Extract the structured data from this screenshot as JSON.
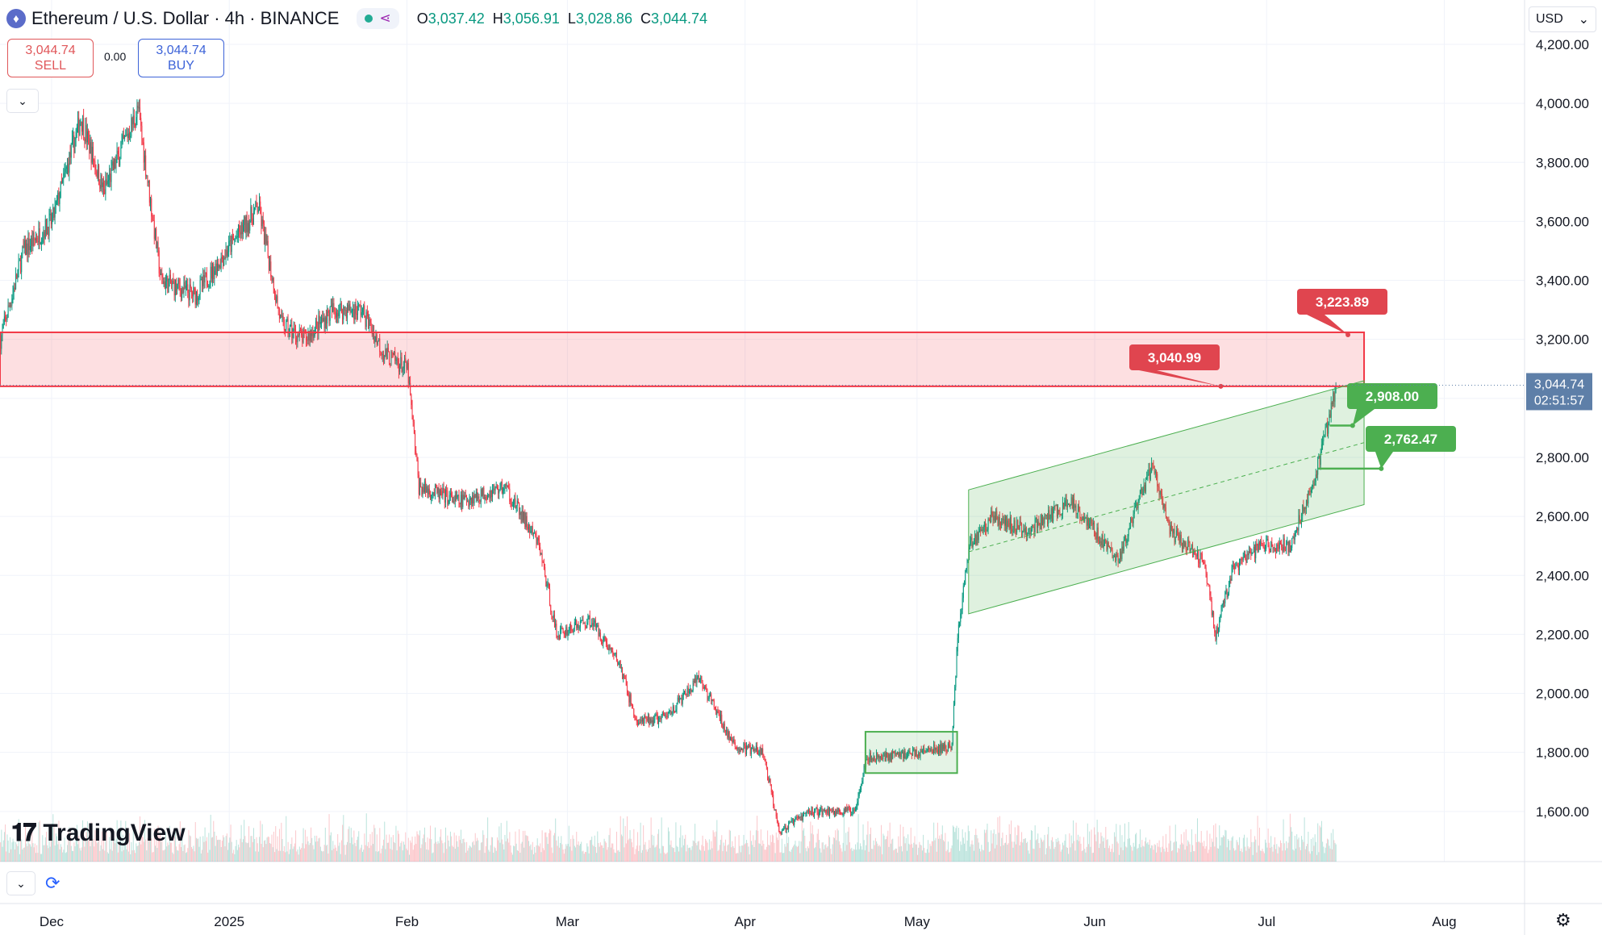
{
  "header": {
    "symbol_icon": "ethereum-icon",
    "title": "Ethereum / U.S. Dollar · 4h · BINANCE",
    "status_icon": "market-open-dot-icon",
    "share_icon": "share-icon",
    "ohlc": {
      "o_label": "O",
      "o_value": "3,037.42",
      "h_label": "H",
      "h_value": "3,056.91",
      "l_label": "L",
      "l_value": "3,028.86",
      "c_label": "C",
      "c_value": "3,044.74"
    }
  },
  "trade": {
    "sell_price": "3,044.74",
    "sell_label": "SELL",
    "spread": "0.00",
    "buy_price": "3,044.74",
    "buy_label": "BUY"
  },
  "currency": {
    "label": "USD",
    "icon": "chevron-down-icon"
  },
  "logo": {
    "text": "TradingView",
    "icon": "tradingview-logo-icon"
  },
  "bottom_tools": {
    "collapse_icon": "chevron-down-icon",
    "replay_icon": "refresh-icon"
  },
  "settings_icon": "gear-icon",
  "colors": {
    "up": "#089981",
    "down": "#f23645",
    "zone_red": "#f23645",
    "zone_green": "#4caf50",
    "price_tag": "#5e7fa8",
    "text": "#131722",
    "grid": "#f0f3fa"
  },
  "chart_data": {
    "type": "candlestick",
    "symbol": "ETHUSD",
    "interval": "4h",
    "x_range": [
      "2024-11-22",
      "2025-08-15"
    ],
    "y_range": [
      1430,
      4230
    ],
    "y_ticks": [
      "4,200.00",
      "4,000.00",
      "3,800.00",
      "3,600.00",
      "3,400.00",
      "3,200.00",
      "2,800.00",
      "2,600.00",
      "2,400.00",
      "2,200.00",
      "2,000.00",
      "1,800.00",
      "1,600.00"
    ],
    "x_ticks": [
      {
        "label": "Dec",
        "date": "2024-12-01"
      },
      {
        "label": "2025",
        "date": "2025-01-01"
      },
      {
        "label": "Feb",
        "date": "2025-02-01"
      },
      {
        "label": "Mar",
        "date": "2025-03-01"
      },
      {
        "label": "Apr",
        "date": "2025-04-01"
      },
      {
        "label": "May",
        "date": "2025-05-01"
      },
      {
        "label": "Jun",
        "date": "2025-06-01"
      },
      {
        "label": "Jul",
        "date": "2025-07-01"
      },
      {
        "label": "Aug",
        "date": "2025-08-01"
      }
    ],
    "price_path": [
      [
        "2024-11-22",
        3200
      ],
      [
        "2024-11-26",
        3500
      ],
      [
        "2024-12-01",
        3600
      ],
      [
        "2024-12-06",
        3950
      ],
      [
        "2024-12-10",
        3700
      ],
      [
        "2024-12-16",
        3980
      ],
      [
        "2024-12-20",
        3400
      ],
      [
        "2024-12-26",
        3350
      ],
      [
        "2025-01-06",
        3650
      ],
      [
        "2025-01-10",
        3250
      ],
      [
        "2025-01-14",
        3200
      ],
      [
        "2025-01-19",
        3300
      ],
      [
        "2025-01-24",
        3300
      ],
      [
        "2025-01-28",
        3150
      ],
      [
        "2025-02-01",
        3100
      ],
      [
        "2025-02-03",
        2700
      ],
      [
        "2025-02-10",
        2650
      ],
      [
        "2025-02-18",
        2700
      ],
      [
        "2025-02-24",
        2500
      ],
      [
        "2025-02-27",
        2200
      ],
      [
        "2025-03-05",
        2250
      ],
      [
        "2025-03-10",
        2100
      ],
      [
        "2025-03-13",
        1900
      ],
      [
        "2025-03-18",
        1920
      ],
      [
        "2025-03-24",
        2050
      ],
      [
        "2025-03-30",
        1820
      ],
      [
        "2025-04-04",
        1800
      ],
      [
        "2025-04-07",
        1530
      ],
      [
        "2025-04-12",
        1600
      ],
      [
        "2025-04-20",
        1600
      ],
      [
        "2025-04-22",
        1780
      ],
      [
        "2025-05-01",
        1800
      ],
      [
        "2025-05-07",
        1820
      ],
      [
        "2025-05-08",
        2200
      ],
      [
        "2025-05-10",
        2500
      ],
      [
        "2025-05-14",
        2600
      ],
      [
        "2025-05-20",
        2550
      ],
      [
        "2025-05-28",
        2650
      ],
      [
        "2025-06-05",
        2450
      ],
      [
        "2025-06-11",
        2780
      ],
      [
        "2025-06-14",
        2550
      ],
      [
        "2025-06-20",
        2450
      ],
      [
        "2025-06-22",
        2200
      ],
      [
        "2025-06-25",
        2420
      ],
      [
        "2025-06-30",
        2500
      ],
      [
        "2025-07-05",
        2500
      ],
      [
        "2025-07-10",
        2780
      ],
      [
        "2025-07-12",
        2950
      ],
      [
        "2025-07-13",
        3044.74
      ]
    ],
    "last_price": "3,044.74",
    "countdown": "02:51:57",
    "annotations": {
      "resistance_zone": {
        "from": "2024-11-22",
        "to": "2025-07-18",
        "top": 3223.89,
        "bottom": 3040.99,
        "labels": [
          "3,223.89",
          "3,040.99"
        ]
      },
      "channel": {
        "from": "2025-05-10",
        "to": "2025-07-18",
        "lower_start": 2270,
        "lower_end": 2640,
        "upper_start": 2690,
        "upper_end": 3060
      },
      "consolidation_box": {
        "from": "2025-04-22",
        "to": "2025-05-08",
        "top": 1870,
        "bottom": 1730
      },
      "targets": [
        {
          "label": "2,908.00",
          "value": 2908,
          "from": "2025-07-12",
          "to": "2025-07-16"
        },
        {
          "label": "2,762.47",
          "value": 2762,
          "from": "2025-07-10",
          "to": "2025-07-21"
        }
      ]
    }
  }
}
